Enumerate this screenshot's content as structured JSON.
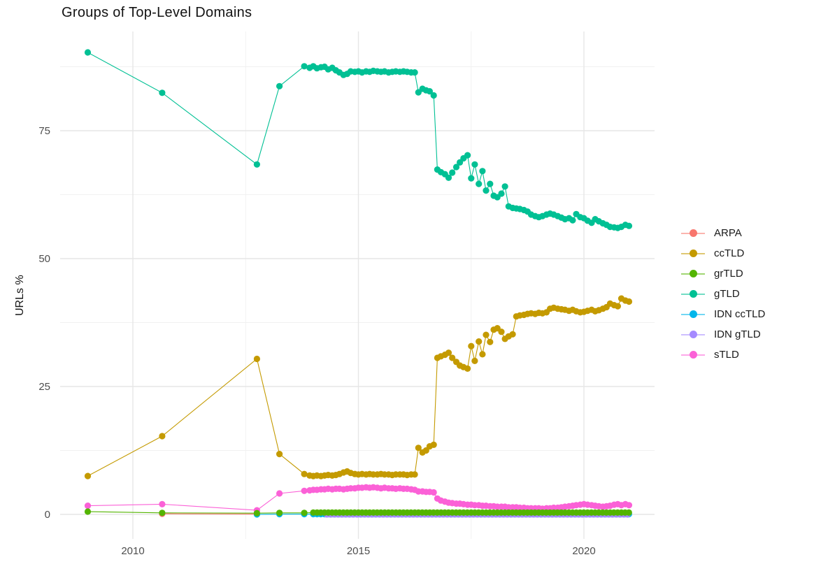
{
  "chart_data": {
    "type": "line",
    "title": "Groups of Top-Level Domains",
    "xlabel": "",
    "ylabel": "URLs %",
    "x_ticks": [
      2010,
      2015,
      2020
    ],
    "x_minor": [
      2012.5,
      2017.5
    ],
    "y_ticks": [
      0,
      25,
      50,
      75
    ],
    "y_minor": [
      12.5,
      37.5,
      62.5,
      87.5
    ],
    "xlim": [
      2008.4,
      2021.6
    ],
    "ylim": [
      -5,
      94
    ],
    "grid": true,
    "legend_position": "right",
    "series": [
      {
        "name": "ARPA",
        "color": "#F8766D",
        "points": [
          [
            2010.65,
            0.12
          ],
          [
            2012.75,
            0.05
          ]
        ]
      },
      {
        "name": "ccTLD",
        "color": "#C49A00",
        "points": [
          [
            2009.0,
            7.5
          ],
          [
            2010.65,
            15.3
          ],
          [
            2012.75,
            30.4
          ],
          [
            2013.25,
            11.8
          ],
          [
            2013.8,
            7.9
          ],
          [
            2013.92,
            7.6
          ],
          [
            2014.0,
            7.5
          ],
          [
            2014.08,
            7.6
          ],
          [
            2014.17,
            7.5
          ],
          [
            2014.25,
            7.6
          ],
          [
            2014.33,
            7.7
          ],
          [
            2014.42,
            7.6
          ],
          [
            2014.5,
            7.7
          ],
          [
            2014.58,
            7.9
          ],
          [
            2014.67,
            8.2
          ],
          [
            2014.75,
            8.4
          ],
          [
            2014.83,
            8.1
          ],
          [
            2014.92,
            7.9
          ],
          [
            2015.0,
            7.8
          ],
          [
            2015.08,
            7.9
          ],
          [
            2015.17,
            7.8
          ],
          [
            2015.25,
            7.9
          ],
          [
            2015.33,
            7.8
          ],
          [
            2015.42,
            7.8
          ],
          [
            2015.5,
            7.9
          ],
          [
            2015.58,
            7.8
          ],
          [
            2015.67,
            7.8
          ],
          [
            2015.75,
            7.7
          ],
          [
            2015.83,
            7.8
          ],
          [
            2015.92,
            7.8
          ],
          [
            2016.0,
            7.8
          ],
          [
            2016.08,
            7.7
          ],
          [
            2016.17,
            7.8
          ],
          [
            2016.25,
            7.8
          ],
          [
            2016.33,
            13.0
          ],
          [
            2016.42,
            12.1
          ],
          [
            2016.5,
            12.5
          ],
          [
            2016.58,
            13.3
          ],
          [
            2016.67,
            13.6
          ],
          [
            2016.75,
            30.6
          ],
          [
            2016.83,
            30.9
          ],
          [
            2016.92,
            31.2
          ],
          [
            2017.0,
            31.6
          ],
          [
            2017.08,
            30.6
          ],
          [
            2017.17,
            29.8
          ],
          [
            2017.25,
            29.1
          ],
          [
            2017.33,
            28.8
          ],
          [
            2017.42,
            28.5
          ],
          [
            2017.5,
            32.9
          ],
          [
            2017.58,
            30.0
          ],
          [
            2017.67,
            33.8
          ],
          [
            2017.75,
            31.3
          ],
          [
            2017.83,
            35.1
          ],
          [
            2017.92,
            33.7
          ],
          [
            2018.0,
            36.1
          ],
          [
            2018.08,
            36.4
          ],
          [
            2018.17,
            35.7
          ],
          [
            2018.25,
            34.3
          ],
          [
            2018.33,
            34.8
          ],
          [
            2018.42,
            35.2
          ],
          [
            2018.5,
            38.7
          ],
          [
            2018.58,
            38.9
          ],
          [
            2018.67,
            39.0
          ],
          [
            2018.75,
            39.2
          ],
          [
            2018.83,
            39.3
          ],
          [
            2018.92,
            39.2
          ],
          [
            2019.0,
            39.4
          ],
          [
            2019.08,
            39.3
          ],
          [
            2019.17,
            39.5
          ],
          [
            2019.25,
            40.2
          ],
          [
            2019.33,
            40.4
          ],
          [
            2019.42,
            40.2
          ],
          [
            2019.5,
            40.1
          ],
          [
            2019.58,
            40.0
          ],
          [
            2019.67,
            39.8
          ],
          [
            2019.75,
            40.0
          ],
          [
            2019.83,
            39.7
          ],
          [
            2019.92,
            39.5
          ],
          [
            2020.0,
            39.6
          ],
          [
            2020.08,
            39.8
          ],
          [
            2020.17,
            40.0
          ],
          [
            2020.25,
            39.7
          ],
          [
            2020.33,
            39.9
          ],
          [
            2020.42,
            40.2
          ],
          [
            2020.5,
            40.5
          ],
          [
            2020.58,
            41.2
          ],
          [
            2020.67,
            40.9
          ],
          [
            2020.75,
            40.7
          ],
          [
            2020.83,
            42.2
          ],
          [
            2020.92,
            41.8
          ],
          [
            2021.0,
            41.6
          ]
        ]
      },
      {
        "name": "grTLD",
        "color": "#53B400",
        "points": [
          [
            2009.0,
            0.55
          ],
          [
            2010.65,
            0.3
          ],
          [
            2012.75,
            0.25
          ],
          [
            2013.25,
            0.3
          ],
          [
            2013.8,
            0.3
          ]
        ],
        "range": {
          "from": 2014.0,
          "to": 2021.0,
          "step": 0.0833,
          "value": 0.35
        }
      },
      {
        "name": "gTLD",
        "color": "#00C094",
        "points": [
          [
            2009.0,
            90.3
          ],
          [
            2010.65,
            82.4
          ],
          [
            2012.75,
            68.4
          ],
          [
            2013.25,
            83.7
          ],
          [
            2013.8,
            87.6
          ],
          [
            2013.92,
            87.3
          ],
          [
            2014.0,
            87.6
          ],
          [
            2014.08,
            87.2
          ],
          [
            2014.17,
            87.4
          ],
          [
            2014.25,
            87.5
          ],
          [
            2014.33,
            87.0
          ],
          [
            2014.42,
            87.3
          ],
          [
            2014.5,
            86.8
          ],
          [
            2014.58,
            86.4
          ],
          [
            2014.67,
            85.9
          ],
          [
            2014.75,
            86.1
          ],
          [
            2014.83,
            86.6
          ],
          [
            2014.92,
            86.5
          ],
          [
            2015.0,
            86.6
          ],
          [
            2015.08,
            86.4
          ],
          [
            2015.17,
            86.6
          ],
          [
            2015.25,
            86.5
          ],
          [
            2015.33,
            86.7
          ],
          [
            2015.42,
            86.6
          ],
          [
            2015.5,
            86.5
          ],
          [
            2015.58,
            86.6
          ],
          [
            2015.67,
            86.4
          ],
          [
            2015.75,
            86.5
          ],
          [
            2015.83,
            86.6
          ],
          [
            2015.92,
            86.5
          ],
          [
            2016.0,
            86.6
          ],
          [
            2016.08,
            86.5
          ],
          [
            2016.17,
            86.4
          ],
          [
            2016.25,
            86.4
          ],
          [
            2016.33,
            82.5
          ],
          [
            2016.42,
            83.2
          ],
          [
            2016.5,
            82.9
          ],
          [
            2016.58,
            82.7
          ],
          [
            2016.67,
            81.9
          ],
          [
            2016.75,
            67.4
          ],
          [
            2016.83,
            66.9
          ],
          [
            2016.92,
            66.5
          ],
          [
            2017.0,
            65.8
          ],
          [
            2017.08,
            66.8
          ],
          [
            2017.17,
            67.9
          ],
          [
            2017.25,
            68.8
          ],
          [
            2017.33,
            69.6
          ],
          [
            2017.42,
            70.2
          ],
          [
            2017.5,
            65.7
          ],
          [
            2017.58,
            68.4
          ],
          [
            2017.67,
            64.6
          ],
          [
            2017.75,
            67.1
          ],
          [
            2017.83,
            63.3
          ],
          [
            2017.92,
            64.6
          ],
          [
            2018.0,
            62.3
          ],
          [
            2018.08,
            62.0
          ],
          [
            2018.17,
            62.7
          ],
          [
            2018.25,
            64.1
          ],
          [
            2018.33,
            60.2
          ],
          [
            2018.42,
            59.9
          ],
          [
            2018.5,
            59.8
          ],
          [
            2018.58,
            59.7
          ],
          [
            2018.67,
            59.5
          ],
          [
            2018.75,
            59.2
          ],
          [
            2018.83,
            58.6
          ],
          [
            2018.92,
            58.3
          ],
          [
            2019.0,
            58.1
          ],
          [
            2019.08,
            58.3
          ],
          [
            2019.17,
            58.6
          ],
          [
            2019.25,
            58.8
          ],
          [
            2019.33,
            58.6
          ],
          [
            2019.42,
            58.3
          ],
          [
            2019.5,
            58.0
          ],
          [
            2019.58,
            57.7
          ],
          [
            2019.67,
            57.9
          ],
          [
            2019.75,
            57.5
          ],
          [
            2019.83,
            58.7
          ],
          [
            2019.92,
            58.1
          ],
          [
            2020.0,
            57.9
          ],
          [
            2020.08,
            57.4
          ],
          [
            2020.17,
            57.0
          ],
          [
            2020.25,
            57.7
          ],
          [
            2020.33,
            57.3
          ],
          [
            2020.42,
            56.9
          ],
          [
            2020.5,
            56.6
          ],
          [
            2020.58,
            56.2
          ],
          [
            2020.67,
            56.1
          ],
          [
            2020.75,
            56.0
          ],
          [
            2020.83,
            56.2
          ],
          [
            2020.92,
            56.6
          ],
          [
            2021.0,
            56.4
          ]
        ]
      },
      {
        "name": "IDN ccTLD",
        "color": "#00B6EB",
        "points": [
          [
            2012.75,
            0.0
          ],
          [
            2013.25,
            0.05
          ],
          [
            2013.8,
            0.05
          ]
        ],
        "range": {
          "from": 2014.0,
          "to": 2021.0,
          "step": 0.0833,
          "value": 0.05
        }
      },
      {
        "name": "IDN gTLD",
        "color": "#A58AFF",
        "points": [],
        "range": {
          "from": 2014.3,
          "to": 2021.0,
          "step": 0.0833,
          "value": 0.0
        }
      },
      {
        "name": "sTLD",
        "color": "#FB61D7",
        "points": [
          [
            2009.0,
            1.7
          ],
          [
            2010.65,
            2.0
          ],
          [
            2012.75,
            0.8
          ],
          [
            2013.25,
            4.1
          ],
          [
            2013.8,
            4.6
          ],
          [
            2013.92,
            4.7
          ],
          [
            2014.0,
            4.8
          ],
          [
            2014.08,
            4.8
          ],
          [
            2014.17,
            4.9
          ],
          [
            2014.25,
            4.9
          ],
          [
            2014.33,
            5.0
          ],
          [
            2014.42,
            4.9
          ],
          [
            2014.5,
            5.0
          ],
          [
            2014.58,
            5.0
          ],
          [
            2014.67,
            4.9
          ],
          [
            2014.75,
            5.0
          ],
          [
            2014.83,
            5.1
          ],
          [
            2014.92,
            5.1
          ],
          [
            2015.0,
            5.2
          ],
          [
            2015.08,
            5.2
          ],
          [
            2015.17,
            5.3
          ],
          [
            2015.25,
            5.2
          ],
          [
            2015.33,
            5.3
          ],
          [
            2015.42,
            5.2
          ],
          [
            2015.5,
            5.1
          ],
          [
            2015.58,
            5.2
          ],
          [
            2015.67,
            5.1
          ],
          [
            2015.75,
            5.1
          ],
          [
            2015.83,
            5.0
          ],
          [
            2015.92,
            5.1
          ],
          [
            2016.0,
            5.0
          ],
          [
            2016.08,
            5.0
          ],
          [
            2016.17,
            4.9
          ],
          [
            2016.25,
            4.8
          ],
          [
            2016.33,
            4.5
          ],
          [
            2016.42,
            4.5
          ],
          [
            2016.5,
            4.4
          ],
          [
            2016.58,
            4.4
          ],
          [
            2016.67,
            4.3
          ],
          [
            2016.75,
            3.1
          ],
          [
            2016.83,
            2.7
          ],
          [
            2016.92,
            2.5
          ],
          [
            2017.0,
            2.3
          ],
          [
            2017.08,
            2.2
          ],
          [
            2017.17,
            2.1
          ],
          [
            2017.25,
            2.1
          ],
          [
            2017.33,
            2.0
          ],
          [
            2017.42,
            1.9
          ],
          [
            2017.5,
            1.9
          ],
          [
            2017.58,
            1.8
          ],
          [
            2017.67,
            1.8
          ],
          [
            2017.75,
            1.7
          ],
          [
            2017.83,
            1.7
          ],
          [
            2017.92,
            1.6
          ],
          [
            2018.0,
            1.6
          ],
          [
            2018.08,
            1.5
          ],
          [
            2018.17,
            1.5
          ],
          [
            2018.25,
            1.5
          ],
          [
            2018.33,
            1.4
          ],
          [
            2018.42,
            1.4
          ],
          [
            2018.5,
            1.4
          ],
          [
            2018.58,
            1.3
          ],
          [
            2018.67,
            1.3
          ],
          [
            2018.75,
            1.2
          ],
          [
            2018.83,
            1.2
          ],
          [
            2018.92,
            1.2
          ],
          [
            2019.0,
            1.2
          ],
          [
            2019.08,
            1.1
          ],
          [
            2019.17,
            1.2
          ],
          [
            2019.25,
            1.2
          ],
          [
            2019.33,
            1.3
          ],
          [
            2019.42,
            1.3
          ],
          [
            2019.5,
            1.4
          ],
          [
            2019.58,
            1.5
          ],
          [
            2019.67,
            1.6
          ],
          [
            2019.75,
            1.7
          ],
          [
            2019.83,
            1.8
          ],
          [
            2019.92,
            1.9
          ],
          [
            2020.0,
            2.0
          ],
          [
            2020.08,
            1.9
          ],
          [
            2020.17,
            1.8
          ],
          [
            2020.25,
            1.7
          ],
          [
            2020.33,
            1.6
          ],
          [
            2020.42,
            1.5
          ],
          [
            2020.5,
            1.6
          ],
          [
            2020.58,
            1.7
          ],
          [
            2020.67,
            1.9
          ],
          [
            2020.75,
            2.0
          ],
          [
            2020.83,
            1.8
          ],
          [
            2020.92,
            2.0
          ],
          [
            2021.0,
            1.8
          ]
        ]
      }
    ]
  },
  "style": {
    "tick_label_color": "#4d4d4d",
    "text_color": "#1a1a1a",
    "grid_major_color": "#e6e6e6",
    "grid_minor_color": "#f1f1f1"
  }
}
